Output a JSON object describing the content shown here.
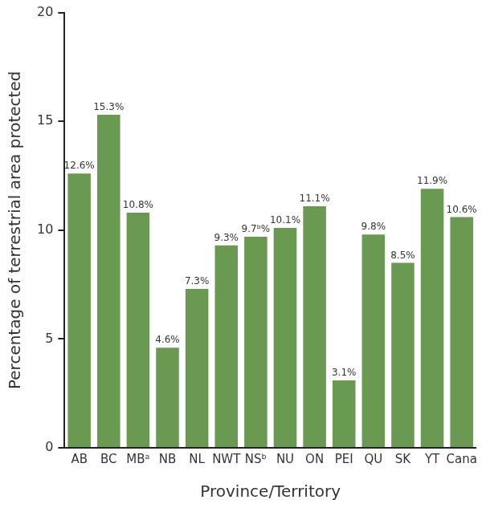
{
  "chart_data": {
    "type": "bar",
    "x_label": "Province/Territory",
    "y_label": "Percentage of terrestrial area protected",
    "categories": [
      "AB",
      "BC",
      "MBᵃ",
      "NB",
      "NL",
      "NWT",
      "NSᵇ",
      "NU",
      "ON",
      "PEI",
      "QU",
      "SK",
      "YT",
      "Cana"
    ],
    "values": [
      12.6,
      15.3,
      10.8,
      4.6,
      7.3,
      9.3,
      9.7,
      10.1,
      11.1,
      3.1,
      9.8,
      8.5,
      11.9,
      10.6
    ],
    "value_labels": [
      "12.6%",
      "15.3%",
      "10.8%",
      "4.6%",
      "7.3%",
      "9.3%",
      "9.7ᵇ%",
      "10.1%",
      "11.1%",
      "3.1%",
      "9.8%",
      "8.5%",
      "11.9%",
      "10.6%"
    ],
    "color": "#6a9a51",
    "ylim": [
      0,
      20
    ],
    "yticks": [
      0,
      5,
      10,
      15,
      20
    ],
    "grid": false,
    "data_labels": true
  }
}
